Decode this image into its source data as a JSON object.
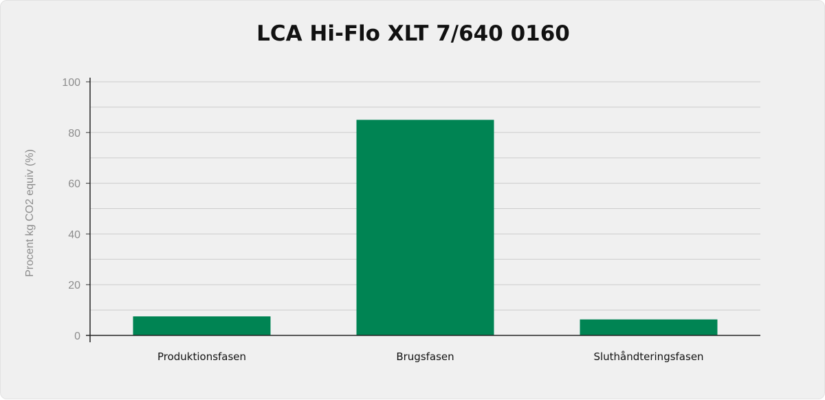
{
  "chart_data": {
    "type": "bar",
    "title": "LCA Hi-Flo XLT 7/640 0160",
    "xlabel": "",
    "ylabel": "Procent kg CO2 equiv (%)",
    "categories": [
      "Produktionsfasen",
      "Brugsfasen",
      "Sluthåndteringsfasen"
    ],
    "values": [
      7.5,
      85,
      6.3
    ],
    "ylim": [
      0,
      100
    ],
    "yticks": [
      0,
      20,
      40,
      60,
      80,
      100
    ],
    "grid": true,
    "legend": "none",
    "bar_color": "#008453"
  }
}
